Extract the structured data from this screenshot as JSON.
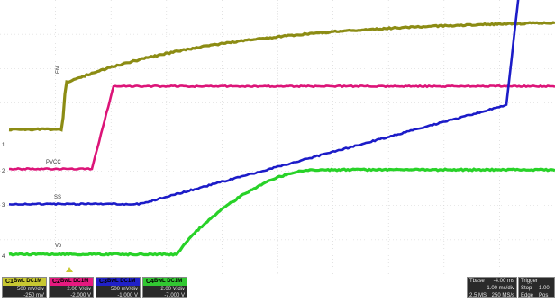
{
  "traces": {
    "pvcc_label": "PVCC",
    "ss_label": "SS",
    "vo_label": "Vo",
    "ch1_label": "EN"
  },
  "channels": [
    {
      "num": "C1",
      "coupling": "BwL DC1M",
      "scale": "500 mV/div",
      "offset": "-250 mV",
      "color": "#c8c832"
    },
    {
      "num": "C2",
      "coupling": "BwL DC1M",
      "scale": "2.00 V/div",
      "offset": "-2.000 V",
      "color": "#e6197f"
    },
    {
      "num": "C3",
      "coupling": "BwL DC1M",
      "scale": "500 mV/div",
      "offset": "-1.000 V",
      "color": "#2020c8"
    },
    {
      "num": "C4",
      "coupling": "BwL DC1M",
      "scale": "2.00 V/div",
      "offset": "-7.000 V",
      "color": "#32c832"
    }
  ],
  "timebase": {
    "label": "Tbase",
    "value": "-4.00 ms",
    "per_div": "1.00 ms/div",
    "samples": "2.5 MS",
    "rate": "250 MS/s"
  },
  "trigger": {
    "label": "Trigger",
    "mode": "Stop",
    "type": "Edge",
    "level": "1.00",
    "slope": "Pos"
  }
}
